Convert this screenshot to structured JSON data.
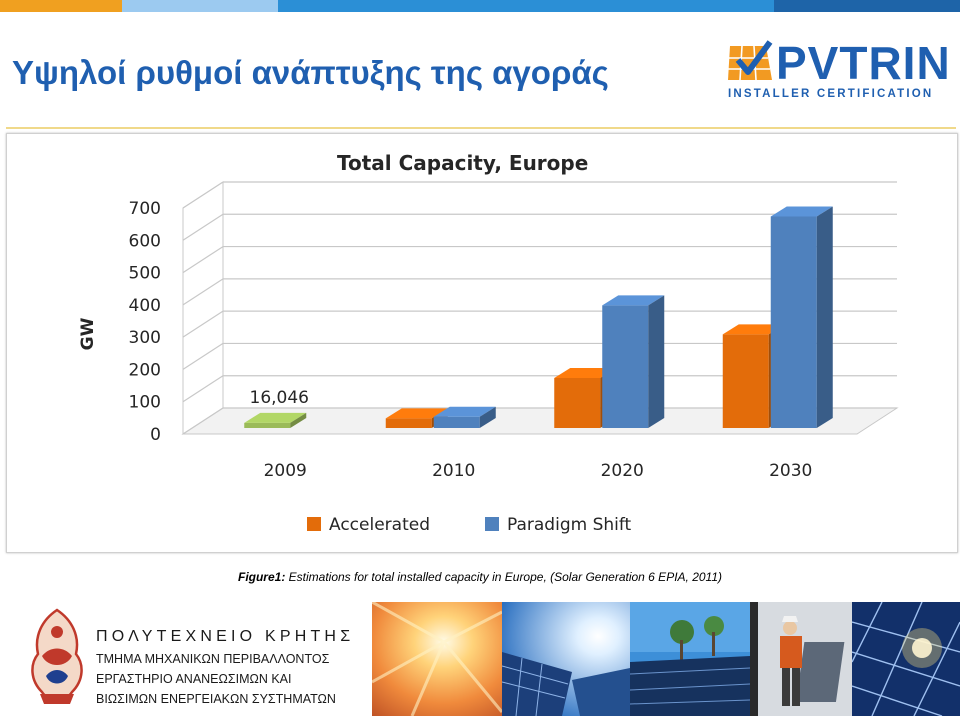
{
  "header": {
    "title": "Υψηλοί ρυθμοί ανάπτυξης της αγοράς",
    "top_bar_colors": [
      "#f0a020",
      "#9ccaf0",
      "#2b8fd6",
      "#1e64a8"
    ]
  },
  "logo": {
    "brand": "PVTRIN",
    "tagline": "INSTALLER CERTIFICATION",
    "icon": "solar-panel-check-icon",
    "colors": {
      "blue": "#1f5fb0",
      "orange": "#f29a22"
    }
  },
  "chart_data": {
    "type": "bar",
    "title": "Total Capacity, Europe",
    "ylabel": "GW",
    "xlabel": "",
    "categories": [
      "2009",
      "2010",
      "2020",
      "2030"
    ],
    "series": [
      {
        "name": "Accelerated",
        "color": "#e36c0a",
        "values": [
          16,
          30,
          155,
          290
        ]
      },
      {
        "name": "Paradigm Shift",
        "color": "#4f81bd",
        "values": [
          16,
          35,
          380,
          655
        ]
      }
    ],
    "ylim": [
      0,
      700
    ],
    "yticks": [
      "700",
      "600",
      "500",
      "400",
      "300",
      "200",
      "100",
      "0"
    ],
    "annotation": {
      "text": "16,046",
      "category": "2009",
      "bar_color": "#9bbb59"
    },
    "legend_position": "bottom",
    "grid": true
  },
  "caption": {
    "label": "Figure1:",
    "text": " Estimations for total installed capacity in Europe, (Solar Generation 6 EPIA, 2011)"
  },
  "footer": {
    "institution": {
      "line1": "ΠΟΛΥΤΕΧΝΕΙΟ ΚΡΗΤΗΣ",
      "line2": "ΤΜΗΜΑ ΜΗΧΑΝΙΚΩΝ ΠΕΡΙΒΑΛΛΟΝΤΟΣ",
      "line3": "ΕΡΓΑΣΤΗΡΙΟ ΑΝΑΝΕΩΣΙΜΩΝ ΚΑΙ",
      "line4": "ΒΙΩΣΙΜΩΝ ΕΝΕΡΓΕΙΑΚΩΝ ΣΥΣΤΗΜΑΤΩΝ",
      "emblem": "university-emblem-icon"
    },
    "photos": [
      "sun-rays-photo",
      "solar-panels-sun-photo",
      "solar-field-trees-photo",
      "installer-panel-photo",
      "solar-cell-closeup-photo"
    ]
  }
}
